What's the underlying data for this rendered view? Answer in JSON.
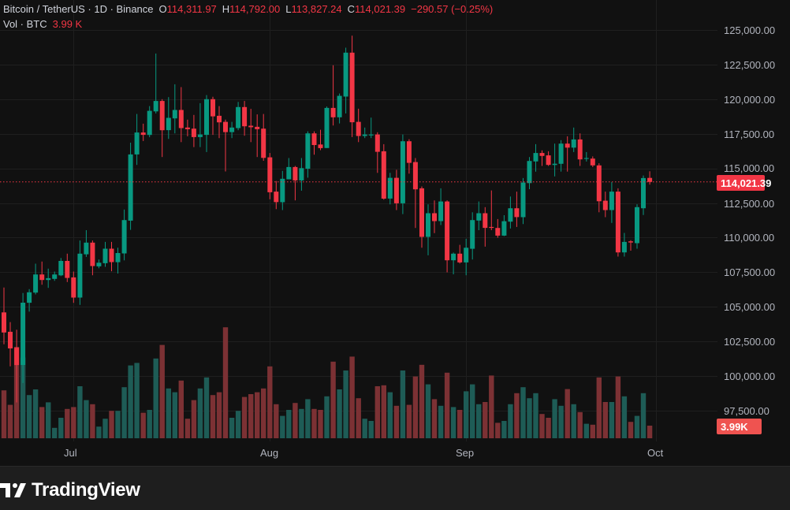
{
  "legend": {
    "symbol": "Bitcoin / TetherUS · 1D · Binance",
    "o_label": "O",
    "o_value": "114,311.97",
    "h_label": "H",
    "h_value": "114,792.00",
    "l_label": "L",
    "l_value": "113,827.24",
    "c_label": "C",
    "c_value": "114,021.39",
    "change": "−290.57 (−0.25%)",
    "vol_label": "Vol · BTC",
    "vol_value": "3.99 K"
  },
  "price_badge": "114,021.39",
  "volume_badge": "3.99K",
  "footer": {
    "brand": "TradingView"
  },
  "colors": {
    "up": "#089981",
    "down": "#f23645",
    "up_vol": "#1e5c56",
    "down_vol": "#7c3134",
    "grid": "#1f1f1f",
    "bg": "#111111"
  },
  "chart_data": {
    "type": "candlestick",
    "title": "Bitcoin / TetherUS · 1D · Binance",
    "y_ticks": [
      "125,000.00",
      "122,500.00",
      "120,000.00",
      "117,500.00",
      "115,000.00",
      "112,500.00",
      "110,000.00",
      "107,500.00",
      "105,000.00",
      "102,500.00",
      "100,000.00",
      "97,500.00"
    ],
    "y_tick_values": [
      125000,
      122500,
      120000,
      117500,
      115000,
      112500,
      110000,
      107500,
      105000,
      102500,
      100000,
      97500
    ],
    "x_ticks": [
      {
        "label": "Jul",
        "index": 11
      },
      {
        "label": "Aug",
        "index": 42
      },
      {
        "label": "Sep",
        "index": 73
      },
      {
        "label": "Oct",
        "index": 103
      }
    ],
    "last_price": 114021.39,
    "volume_unit": "K BTC",
    "ohlcv": [
      [
        104600,
        106400,
        102300,
        103150,
        15.2
      ],
      [
        103200,
        103900,
        100700,
        102000,
        10.6
      ],
      [
        102050,
        103350,
        98100,
        100800,
        29.0
      ],
      [
        100800,
        106000,
        99500,
        105300,
        25.6
      ],
      [
        105290,
        106280,
        104660,
        106050,
        13.7
      ],
      [
        106030,
        108120,
        105900,
        107340,
        15.5
      ],
      [
        107340,
        108270,
        106600,
        106940,
        9.9
      ],
      [
        106940,
        107760,
        106370,
        107070,
        11.4
      ],
      [
        107020,
        107550,
        106880,
        107340,
        3.3
      ],
      [
        107280,
        108530,
        107220,
        108320,
        6.5
      ],
      [
        108320,
        108840,
        106790,
        107090,
        9.3
      ],
      [
        107130,
        107550,
        105290,
        105670,
        9.9
      ],
      [
        105670,
        109790,
        105140,
        108840,
        16.5
      ],
      [
        108800,
        110540,
        108610,
        109640,
        12.1
      ],
      [
        109640,
        109790,
        107280,
        107950,
        10.8
      ],
      [
        107930,
        108420,
        107790,
        108190,
        3.7
      ],
      [
        108150,
        109690,
        107890,
        109200,
        6.2
      ],
      [
        109200,
        109690,
        107570,
        108230,
        8.7
      ],
      [
        108230,
        109270,
        107410,
        108890,
        8.7
      ],
      [
        108860,
        112030,
        108360,
        111270,
        16.2
      ],
      [
        111230,
        116860,
        110560,
        116010,
        23.1
      ],
      [
        116010,
        118930,
        115250,
        117590,
        23.9
      ],
      [
        117590,
        118230,
        116980,
        117420,
        8.1
      ],
      [
        117420,
        119500,
        117250,
        119160,
        9.0
      ],
      [
        119120,
        123300,
        118970,
        119870,
        25.3
      ],
      [
        119870,
        120000,
        115820,
        117760,
        29.6
      ],
      [
        117760,
        120150,
        117130,
        118650,
        15.8
      ],
      [
        118610,
        121080,
        117530,
        119220,
        14.6
      ],
      [
        119220,
        120870,
        116900,
        117910,
        18.3
      ],
      [
        117950,
        118520,
        117320,
        117830,
        6.2
      ],
      [
        117870,
        118860,
        116540,
        117260,
        12.1
      ],
      [
        117260,
        119710,
        116540,
        117450,
        15.8
      ],
      [
        117420,
        120300,
        116180,
        120000,
        19.3
      ],
      [
        120000,
        120170,
        117420,
        118760,
        13.7
      ],
      [
        118800,
        119500,
        117190,
        118330,
        14.6
      ],
      [
        118360,
        118520,
        114780,
        117620,
        35.2
      ],
      [
        117620,
        118360,
        117190,
        117950,
        6.5
      ],
      [
        117910,
        119800,
        117760,
        119430,
        8.7
      ],
      [
        119430,
        119870,
        117360,
        118040,
        13.1
      ],
      [
        118080,
        119300,
        116900,
        117970,
        14.0
      ],
      [
        118000,
        118900,
        115820,
        117830,
        14.6
      ],
      [
        117870,
        118930,
        115550,
        115760,
        15.8
      ],
      [
        115800,
        116110,
        112770,
        113280,
        22.8
      ],
      [
        113320,
        114090,
        112060,
        112560,
        10.8
      ],
      [
        112560,
        114820,
        111990,
        114250,
        7.1
      ],
      [
        114210,
        115750,
        114210,
        115100,
        9.0
      ],
      [
        115100,
        115180,
        112690,
        114130,
        11.2
      ],
      [
        114130,
        115750,
        113390,
        115020,
        9.3
      ],
      [
        114980,
        117680,
        114330,
        117530,
        12.4
      ],
      [
        117530,
        117680,
        115990,
        116690,
        9.3
      ],
      [
        116730,
        117790,
        116320,
        116470,
        9.0
      ],
      [
        116470,
        119470,
        116470,
        119370,
        13.3
      ],
      [
        119370,
        122450,
        118100,
        118690,
        24.3
      ],
      [
        118690,
        120410,
        118250,
        120240,
        15.5
      ],
      [
        120190,
        123720,
        118970,
        123360,
        21.5
      ],
      [
        123360,
        124590,
        117260,
        118330,
        25.9
      ],
      [
        118360,
        119310,
        116900,
        117340,
        12.7
      ],
      [
        117340,
        117950,
        117190,
        117450,
        6.2
      ],
      [
        117380,
        118670,
        117190,
        117450,
        5.5
      ],
      [
        117450,
        117610,
        114680,
        116200,
        16.5
      ],
      [
        116240,
        116750,
        112740,
        112820,
        16.8
      ],
      [
        112820,
        114680,
        112400,
        114320,
        14.6
      ],
      [
        114320,
        114900,
        111990,
        112480,
        10.3
      ],
      [
        112480,
        117450,
        111700,
        116960,
        21.5
      ],
      [
        116960,
        117110,
        114620,
        115400,
        10.6
      ],
      [
        115460,
        115750,
        110700,
        113490,
        19.6
      ],
      [
        113560,
        113700,
        109270,
        110050,
        23.3
      ],
      [
        110050,
        112400,
        108720,
        111760,
        17.1
      ],
      [
        111760,
        112690,
        110330,
        111190,
        12.4
      ],
      [
        111190,
        113560,
        110910,
        112610,
        10.3
      ],
      [
        112610,
        112690,
        107490,
        108360,
        20.8
      ],
      [
        108360,
        108920,
        107350,
        108840,
        9.9
      ],
      [
        108840,
        109480,
        108130,
        108210,
        9.0
      ],
      [
        108210,
        109920,
        107280,
        109270,
        14.9
      ],
      [
        109200,
        111830,
        108420,
        111270,
        17.1
      ],
      [
        111230,
        112610,
        110540,
        111760,
        10.8
      ],
      [
        111760,
        112200,
        109350,
        110700,
        11.5
      ],
      [
        110770,
        113410,
        110540,
        110700,
        19.9
      ],
      [
        110700,
        111340,
        109990,
        110150,
        4.9
      ],
      [
        110150,
        111620,
        110110,
        111190,
        5.5
      ],
      [
        111150,
        112970,
        110660,
        112120,
        10.8
      ],
      [
        112120,
        113320,
        110770,
        111480,
        14.3
      ],
      [
        111480,
        114300,
        110980,
        113980,
        16.2
      ],
      [
        113940,
        115820,
        113500,
        115540,
        12.7
      ],
      [
        115500,
        116750,
        114770,
        116110,
        14.3
      ],
      [
        116110,
        116300,
        115180,
        115900,
        7.7
      ],
      [
        115940,
        116240,
        115180,
        115250,
        6.5
      ],
      [
        115250,
        116790,
        114420,
        115340,
        12.4
      ],
      [
        115330,
        117040,
        114770,
        116790,
        10.3
      ],
      [
        116790,
        117320,
        114770,
        116500,
        15.6
      ],
      [
        116500,
        117950,
        116180,
        117090,
        10.8
      ],
      [
        117090,
        117530,
        115180,
        115650,
        8.3
      ],
      [
        115690,
        116180,
        115500,
        115750,
        4.6
      ],
      [
        115710,
        115870,
        115100,
        115220,
        4.3
      ],
      [
        115220,
        115370,
        111830,
        112630,
        19.3
      ],
      [
        112670,
        113320,
        111480,
        111990,
        11.5
      ],
      [
        111990,
        114020,
        111060,
        113320,
        11.5
      ],
      [
        113320,
        113560,
        108630,
        108930,
        19.6
      ],
      [
        108930,
        110340,
        108630,
        109690,
        13.3
      ],
      [
        109730,
        109810,
        109060,
        109650,
        5.2
      ],
      [
        109600,
        112410,
        109200,
        112200,
        7.1
      ],
      [
        112120,
        114490,
        111630,
        114300,
        14.3
      ],
      [
        114311.97,
        114792,
        113827.24,
        114021.39,
        3.99
      ]
    ]
  }
}
